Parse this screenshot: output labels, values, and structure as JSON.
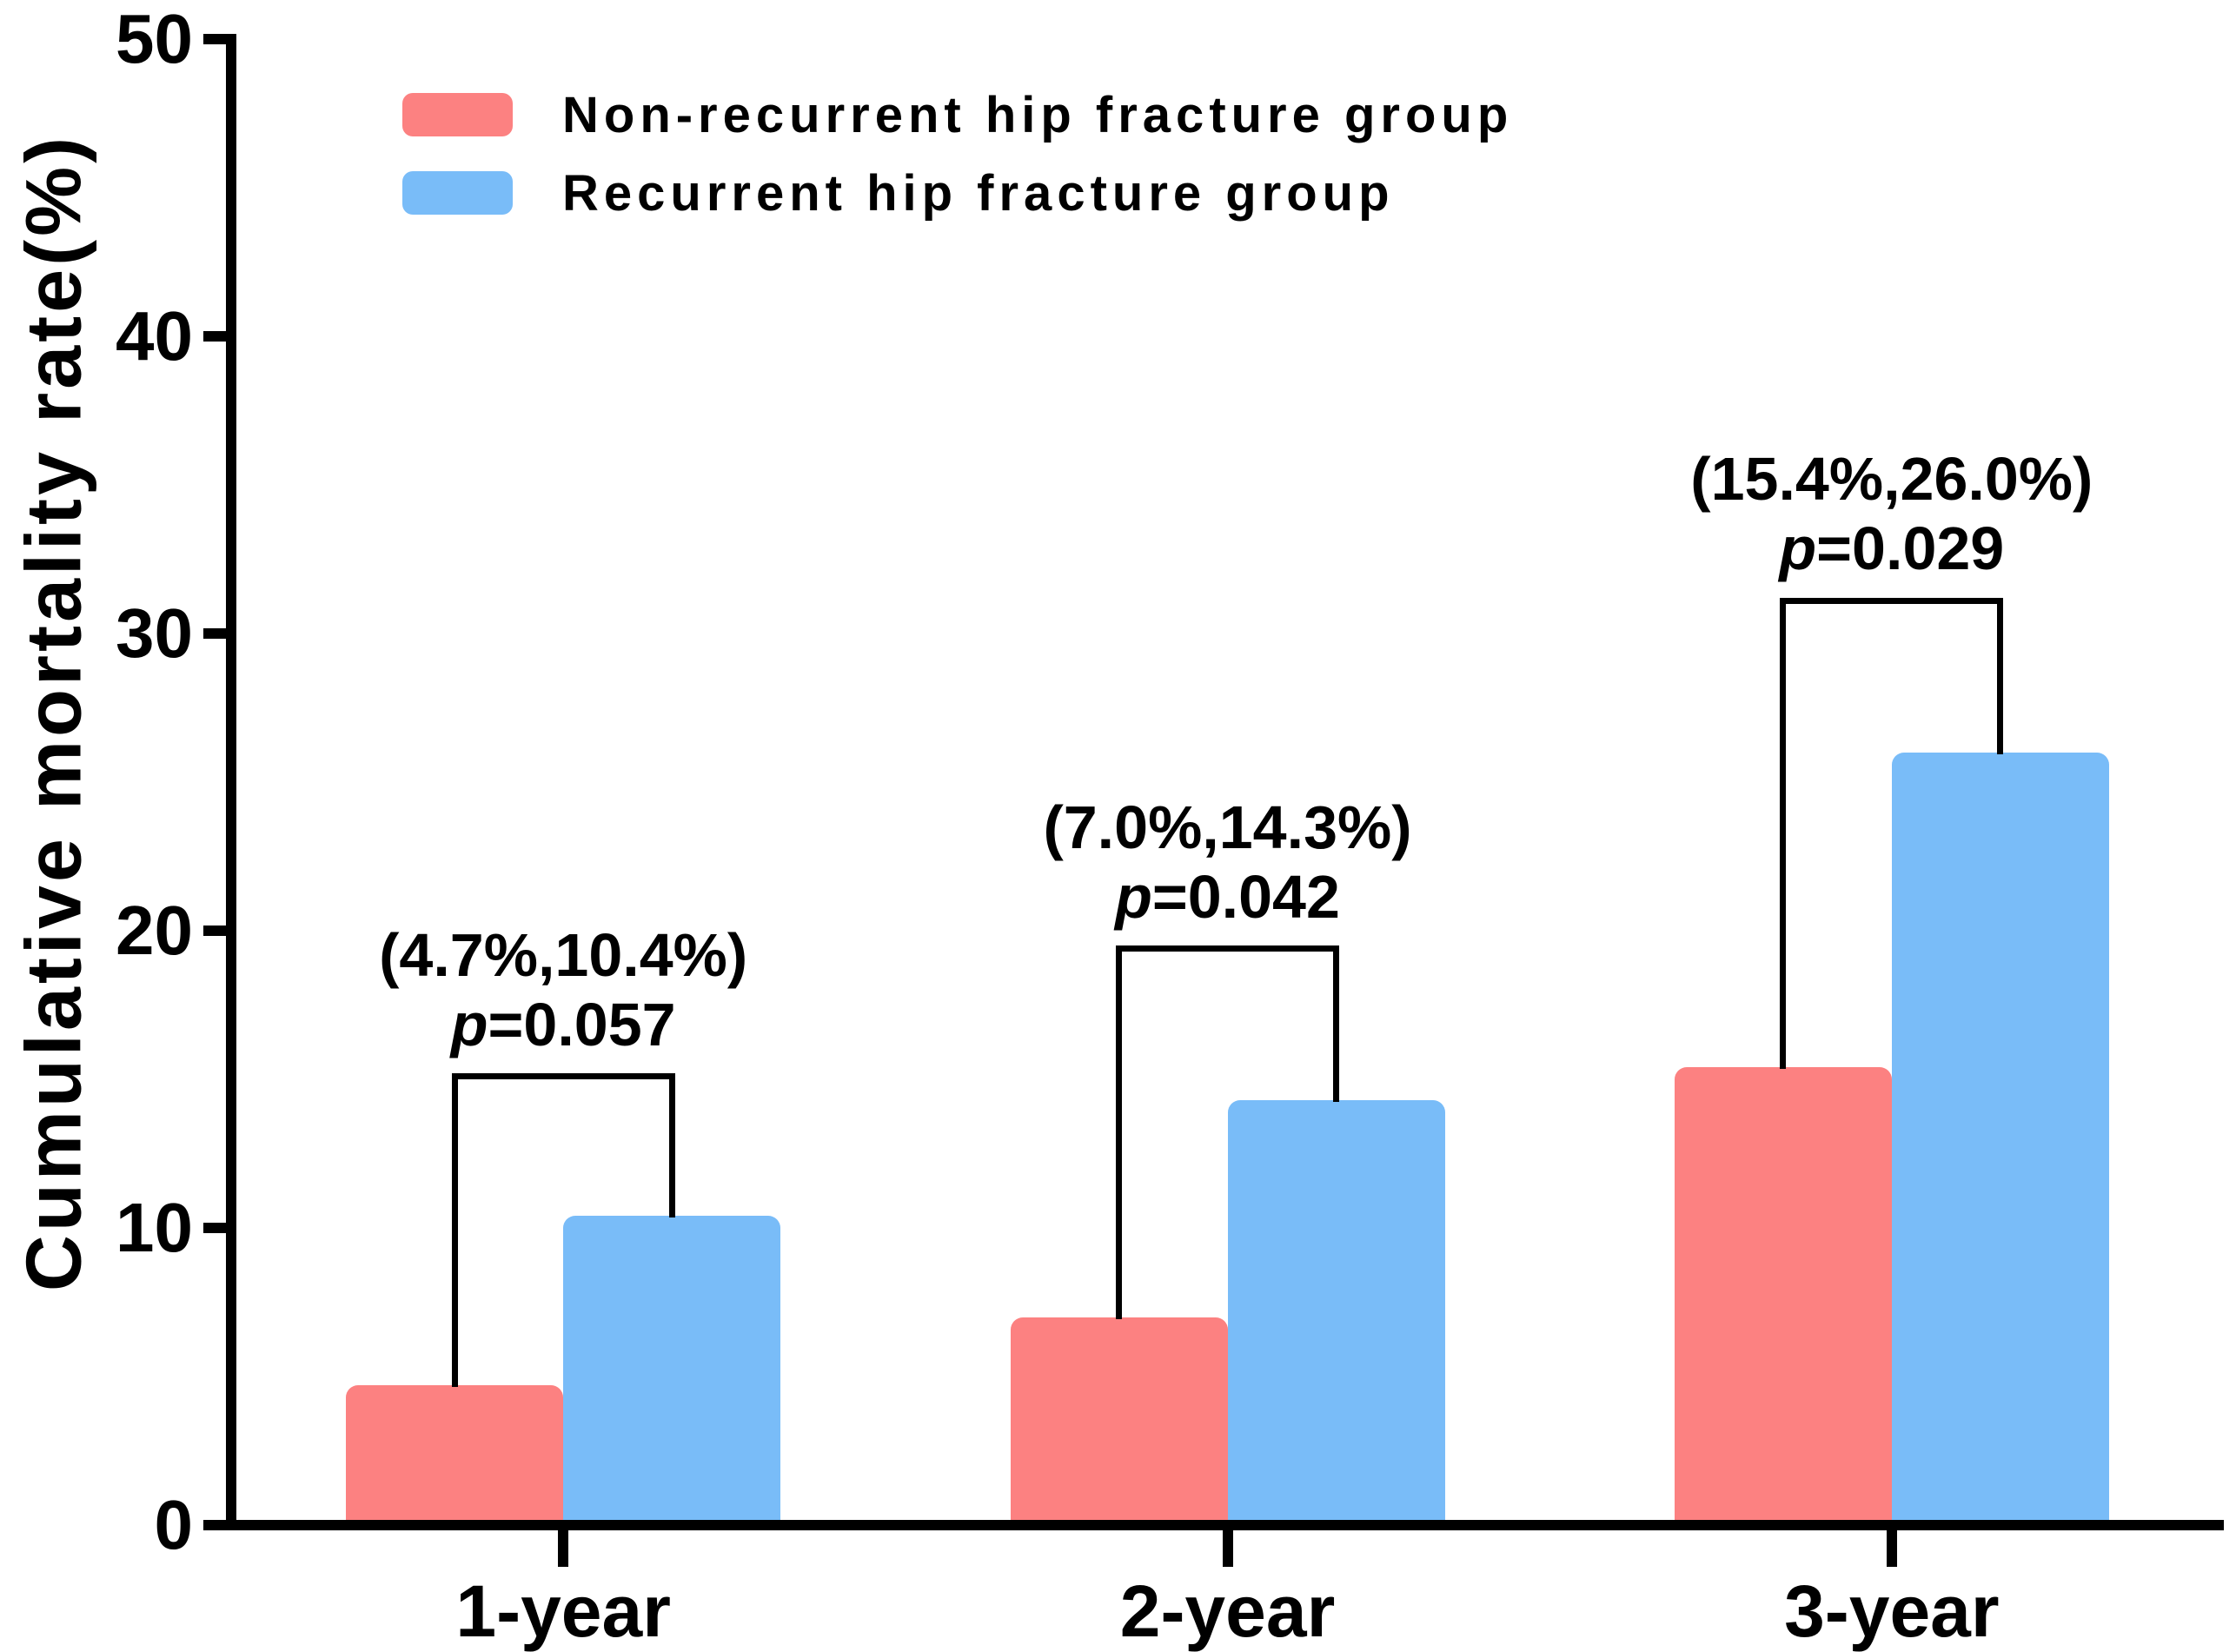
{
  "chart_data": {
    "type": "bar",
    "title": "",
    "categories": [
      "1-year",
      "2-year",
      "3-year"
    ],
    "series": [
      {
        "name": "Non-recurrent hip fracture group",
        "color": "#FC8181",
        "values": [
          4.7,
          7.0,
          15.4
        ]
      },
      {
        "name": "Recurrent hip fracture group",
        "color": "#79BCF8",
        "values": [
          10.4,
          14.3,
          26.0
        ]
      }
    ],
    "ylabel": "Cumulative mortality rate(%)",
    "xlabel": "",
    "ylim": [
      0,
      50
    ],
    "yticks": [
      0,
      10,
      20,
      30,
      40,
      50
    ],
    "grid": false,
    "legend_position": "top-left",
    "axis_color": "#000000",
    "background": "#FFFFFF",
    "value_unit": "%",
    "annotations": [
      {
        "category": "1-year",
        "label": "(4.7%,10.4%)",
        "p_label": "p=0.057",
        "bracket_top_value": 15.1
      },
      {
        "category": "2-year",
        "label": "(7.0%,14.3%)",
        "p_label": "p=0.042",
        "bracket_top_value": 19.4
      },
      {
        "category": "3-year",
        "label": "(15.4%,26.0%)",
        "p_label": "p=0.029",
        "bracket_top_value": 31.1
      }
    ]
  }
}
